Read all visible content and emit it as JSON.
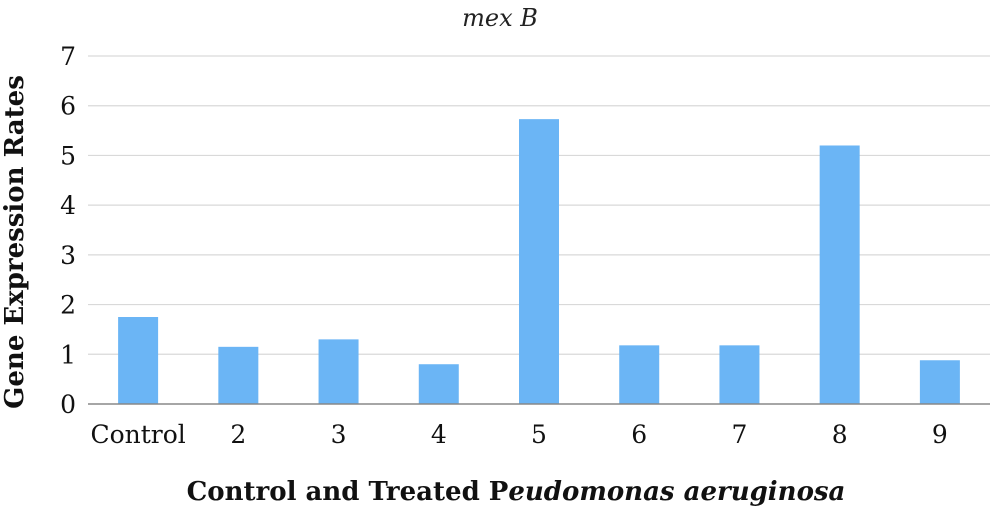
{
  "chart_data": {
    "type": "bar",
    "title": "mex B",
    "xlabel": "Control and Treated Peudomonas aeruginosa",
    "xlabel_parts": [
      {
        "text": "Control and Treated P",
        "italic": false
      },
      {
        "text": "eudomonas aeruginosa",
        "italic": true
      }
    ],
    "ylabel": "Gene Expression Rates",
    "categories": [
      "Control",
      "2",
      "3",
      "4",
      "5",
      "6",
      "7",
      "8",
      "9"
    ],
    "values": [
      1.75,
      1.15,
      1.3,
      0.8,
      5.73,
      1.18,
      1.18,
      5.2,
      0.88
    ],
    "ylim": [
      0,
      7
    ],
    "yticks": [
      "0",
      "1",
      "2",
      "3",
      "4",
      "5",
      "6",
      "7"
    ],
    "grid": true,
    "bar_color": "#6bb5f5"
  }
}
